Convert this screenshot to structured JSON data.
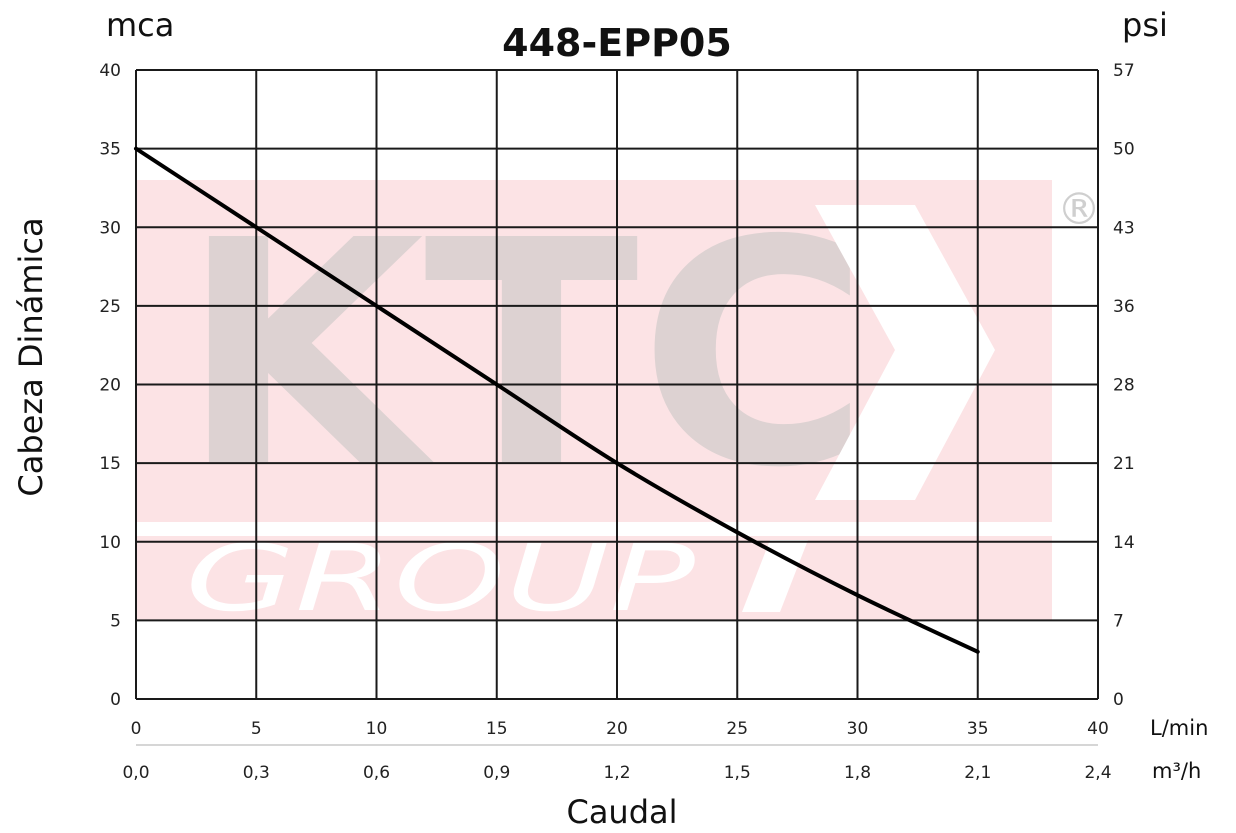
{
  "chart_data": {
    "type": "line",
    "title": "448-EPP05",
    "ylabel": "Cabeza Dinámica",
    "xlabel": "Caudal",
    "y_unit_left": "mca",
    "y_unit_right": "psi",
    "x_unit_primary": "L/min",
    "x_unit_secondary": "m³/h",
    "xlim": [
      0,
      40
    ],
    "ylim": [
      0,
      40
    ],
    "grid": true,
    "x_ticks": [
      "0",
      "5",
      "10",
      "15",
      "20",
      "25",
      "30",
      "35",
      "40"
    ],
    "x2_ticks": [
      "0,0",
      "0,3",
      "0,6",
      "0,9",
      "1,2",
      "1,5",
      "1,8",
      "2,1",
      "2,4"
    ],
    "y_ticks": [
      "0",
      "5",
      "10",
      "15",
      "20",
      "25",
      "30",
      "35",
      "40"
    ],
    "y2_ticks": [
      "0",
      "7",
      "14",
      "21",
      "28",
      "36",
      "43",
      "50",
      "57"
    ],
    "series": [
      {
        "color": "#000000",
        "x": [
          0,
          5,
          10,
          15,
          20,
          25,
          30,
          35
        ],
        "y": [
          35,
          30,
          25,
          20,
          15,
          10.6,
          6.6,
          3
        ]
      }
    ],
    "watermark": {
      "text": "KTC",
      "subtext": "GROUP",
      "mark": "®",
      "band_color": "#fce3e5",
      "letter_color": "#ddd2d2"
    }
  }
}
